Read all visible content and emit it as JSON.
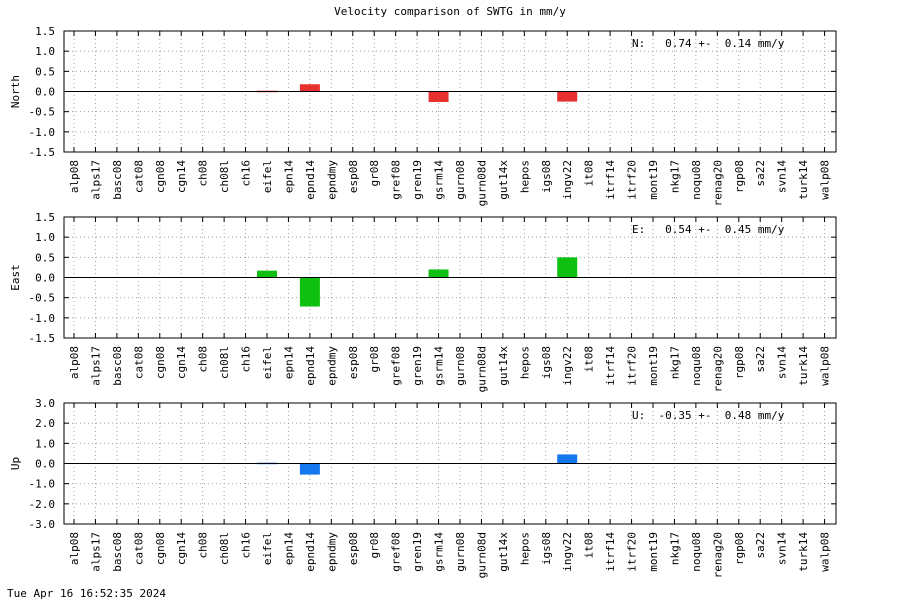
{
  "title": "Velocity comparison of SWTG in mm/y",
  "footer": {
    "timestamp": "Tue Apr 16 16:52:35 2024"
  },
  "colors": {
    "north": "#e8302f",
    "east": "#10c010",
    "up": "#1577ee"
  },
  "chart_data": {
    "type": "bar",
    "grid": true,
    "categories": [
      "alp08",
      "alps17",
      "basc08",
      "cat08",
      "cgn08",
      "cgn14",
      "ch08",
      "ch08l",
      "ch16",
      "eifel",
      "epn14",
      "epnd14",
      "epndmy",
      "esp08",
      "gr08",
      "gref08",
      "gren19",
      "gsrm14",
      "gurn08",
      "gurn08d",
      "gut14x",
      "hepos",
      "igs08",
      "ingv22",
      "it08",
      "itrf14",
      "itrf20",
      "mont19",
      "nkg17",
      "noqu08",
      "renag20",
      "rgp08",
      "sa22",
      "svn14",
      "turk14",
      "walp08"
    ],
    "panels": [
      {
        "ylabel": "North",
        "ylim": [
          -1.5,
          1.5
        ],
        "yticks": [
          "1.5",
          "1.0",
          "0.5",
          "0.0",
          "-0.5",
          "-1.0",
          "-1.5"
        ],
        "summary": "N:   0.74 +-  0.14 mm/y",
        "values": [
          0,
          0,
          0,
          0,
          0,
          0,
          0,
          0,
          0,
          0.02,
          0,
          0.18,
          0,
          0,
          0,
          0,
          0,
          -0.26,
          0,
          0,
          0,
          0,
          0,
          -0.25,
          0,
          0,
          0,
          0,
          0,
          0,
          0,
          0,
          0,
          0,
          0,
          0
        ]
      },
      {
        "ylabel": "East",
        "ylim": [
          -1.5,
          1.5
        ],
        "yticks": [
          "1.5",
          "1.0",
          "0.5",
          "0.0",
          "-0.5",
          "-1.0",
          "-1.5"
        ],
        "summary": "E:   0.54 +-  0.45 mm/y",
        "values": [
          0,
          0,
          0,
          0,
          0,
          0,
          0,
          0,
          0,
          0.17,
          0,
          -0.72,
          0,
          0,
          0,
          0,
          0,
          0.2,
          0,
          0,
          0,
          0,
          0,
          0.5,
          0,
          0,
          0,
          0,
          0,
          0,
          0,
          0,
          0,
          0,
          0,
          0
        ]
      },
      {
        "ylabel": "Up",
        "ylim": [
          -3,
          3
        ],
        "yticks": [
          "3.0",
          "2.0",
          "1.0",
          "0.0",
          "-1.0",
          "-2.0",
          "-3.0"
        ],
        "summary": "U:  -0.35 +-  0.48 mm/y",
        "values": [
          0,
          0,
          0,
          0,
          0,
          0,
          0,
          0,
          0,
          0.04,
          0,
          -0.55,
          0,
          0,
          0,
          0,
          0,
          0,
          0,
          0,
          0,
          0,
          0,
          0.45,
          0,
          0,
          0,
          0,
          0,
          0,
          0,
          0,
          0,
          0,
          0,
          0
        ]
      }
    ]
  }
}
